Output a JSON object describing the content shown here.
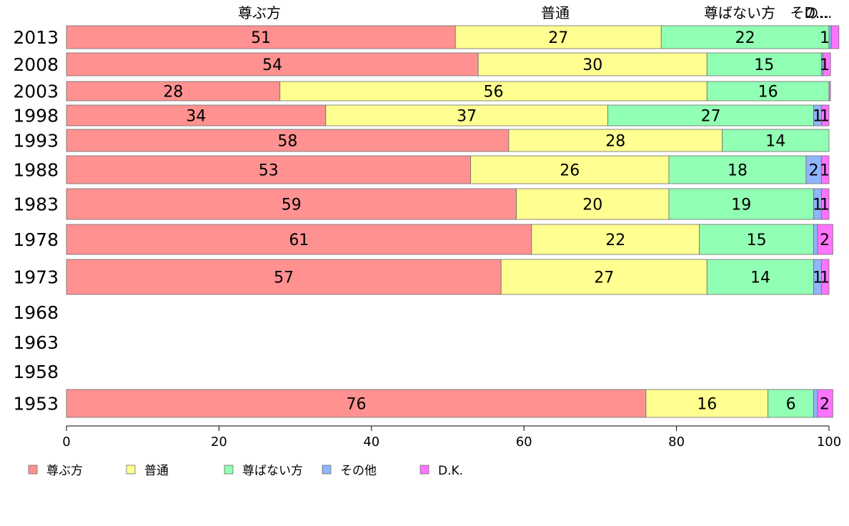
{
  "chart_data": {
    "type": "bar",
    "orientation": "horizontal",
    "stacked": true,
    "categories": [
      "2013",
      "2008",
      "2003",
      "1998",
      "1993",
      "1988",
      "1983",
      "1978",
      "1973",
      "1968",
      "1963",
      "1958",
      "1953"
    ],
    "series": [
      {
        "name": "尊ぶ方",
        "color": "#ff9191",
        "values": [
          51,
          54,
          28,
          34,
          58,
          53,
          59,
          61,
          57,
          null,
          null,
          null,
          76
        ]
      },
      {
        "name": "普通",
        "color": "#ffff91",
        "values": [
          27,
          30,
          56,
          37,
          28,
          26,
          20,
          22,
          27,
          null,
          null,
          null,
          16
        ]
      },
      {
        "name": "尊ばない方",
        "color": "#91ffb4",
        "values": [
          22,
          15,
          16,
          27,
          14,
          18,
          19,
          15,
          14,
          null,
          null,
          null,
          6
        ]
      },
      {
        "name": "その他",
        "color": "#91b4ff",
        "values": [
          0.3,
          0.2,
          0,
          1,
          0,
          2,
          1,
          0.5,
          1,
          null,
          null,
          null,
          0.5
        ]
      },
      {
        "name": "D.K.",
        "color": "#ff73ff",
        "values": [
          1,
          1,
          0.2,
          1,
          0,
          1,
          1,
          2,
          1,
          null,
          null,
          null,
          2
        ]
      }
    ],
    "data_labels": [
      [
        "51",
        "27",
        "22",
        "",
        "1"
      ],
      [
        "54",
        "30",
        "15",
        "",
        "1"
      ],
      [
        "28",
        "56",
        "16",
        "",
        ""
      ],
      [
        "34",
        "37",
        "27",
        "1",
        "1"
      ],
      [
        "58",
        "28",
        "14",
        "",
        ""
      ],
      [
        "53",
        "26",
        "18",
        "2",
        "1"
      ],
      [
        "59",
        "20",
        "19",
        "1",
        "1"
      ],
      [
        "61",
        "22",
        "15",
        "",
        "2"
      ],
      [
        "57",
        "27",
        "14",
        "1",
        "1"
      ],
      [
        "",
        "",
        "",
        "",
        ""
      ],
      [
        "",
        "",
        "",
        "",
        ""
      ],
      [
        "",
        "",
        "",
        "",
        ""
      ],
      [
        "76",
        "16",
        "6",
        "",
        "2"
      ]
    ],
    "column_headers": [
      "尊ぶ方",
      "普通",
      "尊ばない方",
      "その...",
      "D..."
    ],
    "xlim": [
      0,
      100
    ],
    "xticks": [
      "0",
      "20",
      "40",
      "60",
      "80",
      "100"
    ],
    "xlabel": "",
    "ylabel": "",
    "title": "",
    "legend_position": "bottom-left",
    "grid": false
  }
}
